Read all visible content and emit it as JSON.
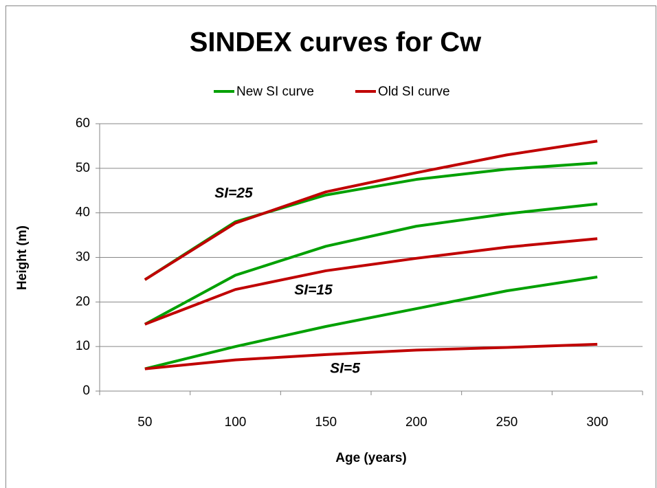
{
  "chart_data": {
    "type": "line",
    "title": "SINDEX curves for Cw",
    "x_label": "Age (years)",
    "y_label": "Height (m)",
    "categories": [
      50,
      100,
      150,
      200,
      250,
      300
    ],
    "series": [
      {
        "name": "New SI curve",
        "color": "#00a000",
        "curves": [
          [
            25,
            38,
            44,
            47.5,
            49.8,
            51.2
          ],
          [
            15,
            26,
            32.5,
            37,
            39.8,
            42
          ],
          [
            5,
            10,
            14.5,
            18.5,
            22.5,
            25.6
          ]
        ]
      },
      {
        "name": "Old SI curve",
        "color": "#c00000",
        "curves": [
          [
            25,
            37.7,
            44.7,
            49,
            53,
            56.1
          ],
          [
            15,
            22.8,
            27,
            29.8,
            32.3,
            34.2
          ],
          [
            5,
            7,
            8.2,
            9.2,
            9.8,
            10.5
          ]
        ]
      }
    ],
    "annotations": [
      "SI=25",
      "SI=15",
      "SI=5"
    ],
    "ylim": [
      0,
      60
    ],
    "yticks": [
      0,
      10,
      20,
      30,
      40,
      50,
      60
    ],
    "grid": true,
    "legend": "top"
  }
}
